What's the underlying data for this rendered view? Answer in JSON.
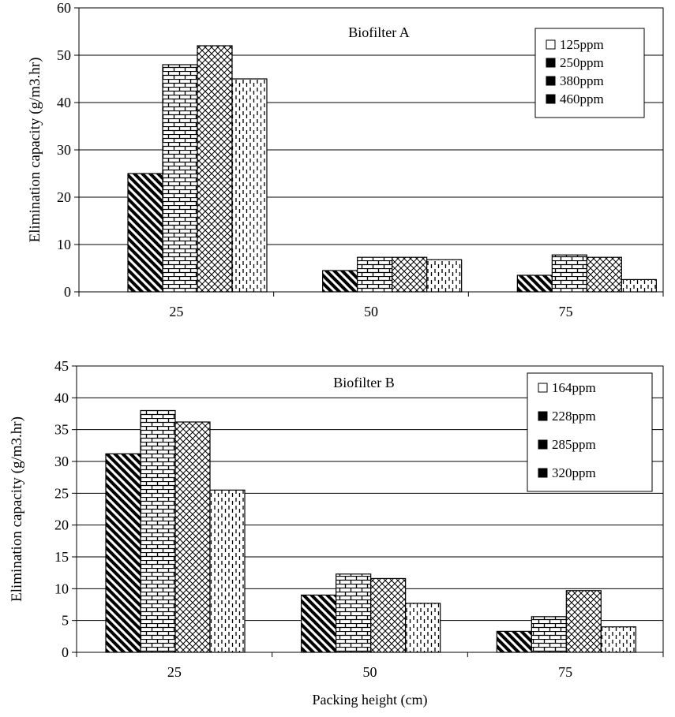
{
  "chart_data": [
    {
      "type": "bar",
      "title": "Biofilter A",
      "ylabel": "Elimination capacity (g/m3.hr)",
      "xlabel": "",
      "ylim": [
        0,
        60
      ],
      "ytick_step": 10,
      "grid": true,
      "legend_position": "top-right",
      "categories": [
        "25",
        "50",
        "75"
      ],
      "series": [
        {
          "name": "125ppm",
          "pattern": "diagonal",
          "values": [
            25,
            4.5,
            3.5
          ]
        },
        {
          "name": "250ppm",
          "pattern": "brick",
          "values": [
            48,
            7.3,
            7.8
          ]
        },
        {
          "name": "380ppm",
          "pattern": "crosshatch",
          "values": [
            52,
            7.3,
            7.3
          ]
        },
        {
          "name": "460ppm",
          "pattern": "dashed",
          "values": [
            45,
            6.8,
            2.6
          ]
        }
      ]
    },
    {
      "type": "bar",
      "title": "Biofilter B",
      "ylabel": "Elimination capacity (g/m3.hr)",
      "xlabel": "Packing height (cm)",
      "ylim": [
        0,
        45
      ],
      "ytick_step": 5,
      "grid": true,
      "legend_position": "top-right",
      "categories": [
        "25",
        "50",
        "75"
      ],
      "series": [
        {
          "name": "164ppm",
          "pattern": "diagonal",
          "values": [
            31.2,
            9,
            3.3
          ]
        },
        {
          "name": "228ppm",
          "pattern": "brick",
          "values": [
            38,
            12.3,
            5.6
          ]
        },
        {
          "name": "285ppm",
          "pattern": "crosshatch",
          "values": [
            36.2,
            11.6,
            9.7
          ]
        },
        {
          "name": "320ppm",
          "pattern": "dashed",
          "values": [
            25.5,
            7.7,
            4
          ]
        }
      ]
    }
  ]
}
